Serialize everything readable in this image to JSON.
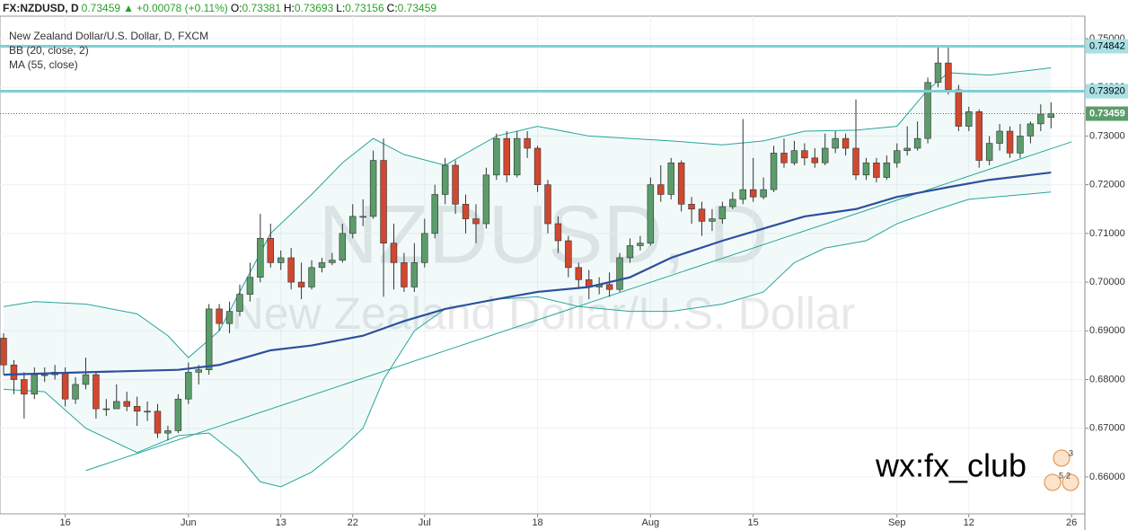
{
  "header": {
    "symbol": "FX:NZDUSD, D",
    "price": "0.73459",
    "arrow": "▲",
    "change": "+0.00078 (+0.11%)",
    "open_label": "O:",
    "open": "0.73381",
    "high_label": "H:",
    "high": "0.73693",
    "low_label": "L:",
    "low": "0.73156",
    "close_label": "C:",
    "close": "0.73459"
  },
  "watermark": {
    "symbol": "NZDUSD, D",
    "name": "New Zealand Dollar/U.S. Dollar"
  },
  "signature": "wx:fx_club",
  "events": [
    "3",
    "5",
    "2"
  ],
  "chart_data": {
    "type": "candlestick",
    "legend": [
      "New Zealand Dollar/U.S. Dollar, D, FXCM",
      "BB (20, close, 2)",
      "MA (55, close)"
    ],
    "up_color": "#5b9c6b",
    "down_color": "#d2472f",
    "xlim": [
      -0.35,
      105.3
    ],
    "xticks": [
      {
        "value": 6,
        "label": "16"
      },
      {
        "value": 18,
        "label": "Jun"
      },
      {
        "value": 27,
        "label": "13"
      },
      {
        "value": 34,
        "label": "22"
      },
      {
        "value": 41,
        "label": "Jul"
      },
      {
        "value": 52,
        "label": "18"
      },
      {
        "value": 63,
        "label": "Aug"
      },
      {
        "value": 73,
        "label": "15"
      },
      {
        "value": 87,
        "label": "Sep"
      },
      {
        "value": 94,
        "label": "12"
      },
      {
        "value": 104,
        "label": "26"
      }
    ],
    "ylim": [
      0.65243,
      0.75461
    ],
    "yticks": [
      {
        "value": 0.66,
        "label": "0.66000"
      },
      {
        "value": 0.67,
        "label": "0.67000"
      },
      {
        "value": 0.68,
        "label": "0.68000"
      },
      {
        "value": 0.69,
        "label": "0.69000"
      },
      {
        "value": 0.7,
        "label": "0.70000"
      },
      {
        "value": 0.71,
        "label": "0.71000"
      },
      {
        "value": 0.72,
        "label": "0.72000"
      },
      {
        "value": 0.73,
        "label": "0.73000"
      },
      {
        "value": 0.74,
        "label": "0.74000"
      },
      {
        "value": 0.75,
        "label": "0.75000"
      }
    ],
    "grid": true,
    "open": [
      0.6885,
      0.683,
      0.68,
      0.677,
      0.681,
      0.681,
      0.6815,
      0.676,
      0.679,
      0.681,
      0.674,
      0.674,
      0.6755,
      0.6745,
      0.6735,
      0.6735,
      0.669,
      0.6695,
      0.676,
      0.6815,
      0.682,
      0.6945,
      0.6915,
      0.694,
      0.6975,
      0.701,
      0.709,
      0.704,
      0.705,
      0.7,
      0.699,
      0.703,
      0.704,
      0.7045,
      0.71,
      0.7135,
      0.7135,
      0.725,
      0.708,
      0.704,
      0.699,
      0.704,
      0.71,
      0.718,
      0.724,
      0.716,
      0.713,
      0.712,
      0.722,
      0.7295,
      0.722,
      0.7295,
      0.7275,
      0.72,
      0.712,
      0.7085,
      0.703,
      0.7005,
      0.699,
      0.6995,
      0.6985,
      0.705,
      0.7075,
      0.708,
      0.72,
      0.718,
      0.7245,
      0.716,
      0.715,
      0.7125,
      0.713,
      0.7155,
      0.717,
      0.719,
      0.7175,
      0.719,
      0.7265,
      0.7245,
      0.727,
      0.7255,
      0.7245,
      0.7275,
      0.7295,
      0.7275,
      0.722,
      0.7245,
      0.7215,
      0.7245,
      0.727,
      0.7275,
      0.7295,
      0.741,
      0.745,
      0.7395,
      0.732,
      0.735,
      0.725,
      0.7285,
      0.731,
      0.7265,
      0.73,
      0.7325,
      0.73381
    ],
    "high": [
      0.6895,
      0.684,
      0.6815,
      0.6825,
      0.6825,
      0.683,
      0.6825,
      0.6805,
      0.6845,
      0.6815,
      0.676,
      0.679,
      0.6775,
      0.6765,
      0.6755,
      0.675,
      0.6705,
      0.677,
      0.6835,
      0.683,
      0.6955,
      0.6955,
      0.696,
      0.6995,
      0.704,
      0.714,
      0.712,
      0.7065,
      0.707,
      0.704,
      0.7045,
      0.705,
      0.706,
      0.712,
      0.716,
      0.717,
      0.727,
      0.7295,
      0.712,
      0.706,
      0.708,
      0.713,
      0.72,
      0.7255,
      0.725,
      0.718,
      0.716,
      0.7235,
      0.7305,
      0.731,
      0.731,
      0.731,
      0.728,
      0.721,
      0.7135,
      0.7095,
      0.704,
      0.7025,
      0.701,
      0.702,
      0.706,
      0.709,
      0.7095,
      0.7215,
      0.724,
      0.7255,
      0.725,
      0.7175,
      0.7165,
      0.715,
      0.7165,
      0.7185,
      0.7335,
      0.7255,
      0.7215,
      0.728,
      0.7295,
      0.729,
      0.7285,
      0.7275,
      0.7305,
      0.731,
      0.7305,
      0.7375,
      0.7255,
      0.7255,
      0.726,
      0.7285,
      0.732,
      0.733,
      0.742,
      0.7485,
      0.7485,
      0.7405,
      0.736,
      0.7355,
      0.73,
      0.7325,
      0.732,
      0.7325,
      0.733,
      0.7365,
      0.73693
    ],
    "low": [
      0.681,
      0.677,
      0.672,
      0.676,
      0.6795,
      0.68,
      0.6745,
      0.675,
      0.678,
      0.672,
      0.6725,
      0.674,
      0.6735,
      0.6705,
      0.6715,
      0.668,
      0.6675,
      0.669,
      0.675,
      0.679,
      0.681,
      0.69,
      0.6895,
      0.693,
      0.696,
      0.7,
      0.703,
      0.7025,
      0.6985,
      0.6965,
      0.6985,
      0.702,
      0.7035,
      0.704,
      0.709,
      0.7115,
      0.713,
      0.697,
      0.6985,
      0.698,
      0.698,
      0.703,
      0.709,
      0.716,
      0.714,
      0.71,
      0.708,
      0.711,
      0.721,
      0.7205,
      0.7215,
      0.7255,
      0.7185,
      0.71,
      0.706,
      0.701,
      0.699,
      0.6965,
      0.6975,
      0.697,
      0.698,
      0.704,
      0.7065,
      0.7075,
      0.7165,
      0.717,
      0.7145,
      0.712,
      0.7095,
      0.7105,
      0.712,
      0.715,
      0.716,
      0.7165,
      0.717,
      0.7185,
      0.7235,
      0.724,
      0.724,
      0.7235,
      0.724,
      0.7265,
      0.726,
      0.721,
      0.721,
      0.7205,
      0.721,
      0.7235,
      0.726,
      0.727,
      0.7285,
      0.74,
      0.7385,
      0.731,
      0.731,
      0.7235,
      0.724,
      0.727,
      0.7255,
      0.7255,
      0.7285,
      0.731,
      0.73156
    ],
    "close": [
      0.683,
      0.68,
      0.677,
      0.681,
      0.681,
      0.6815,
      0.676,
      0.679,
      0.681,
      0.674,
      0.674,
      0.6755,
      0.6745,
      0.6735,
      0.6735,
      0.669,
      0.6695,
      0.676,
      0.6815,
      0.682,
      0.6945,
      0.6915,
      0.694,
      0.6975,
      0.701,
      0.709,
      0.704,
      0.705,
      0.7,
      0.699,
      0.703,
      0.704,
      0.7045,
      0.71,
      0.7135,
      0.7135,
      0.725,
      0.708,
      0.704,
      0.699,
      0.704,
      0.71,
      0.718,
      0.724,
      0.716,
      0.713,
      0.712,
      0.722,
      0.7295,
      0.722,
      0.7295,
      0.7275,
      0.72,
      0.712,
      0.7085,
      0.703,
      0.7005,
      0.699,
      0.6995,
      0.6985,
      0.705,
      0.7075,
      0.708,
      0.72,
      0.718,
      0.7245,
      0.716,
      0.715,
      0.7125,
      0.713,
      0.7155,
      0.717,
      0.719,
      0.7175,
      0.719,
      0.7265,
      0.7245,
      0.727,
      0.7255,
      0.7245,
      0.7275,
      0.7295,
      0.7275,
      0.722,
      0.7245,
      0.7215,
      0.7245,
      0.727,
      0.7275,
      0.7295,
      0.741,
      0.745,
      0.7395,
      0.732,
      0.735,
      0.725,
      0.7285,
      0.731,
      0.7265,
      0.73,
      0.7325,
      0.7345,
      0.73459
    ],
    "bb_upper": {
      "color": "#26a69a",
      "x": [
        0,
        3,
        8,
        13,
        16,
        18,
        21,
        26,
        30,
        33,
        36,
        39,
        43,
        48,
        52,
        57,
        61,
        65,
        70,
        74,
        78,
        83,
        87,
        90,
        92,
        96,
        102
      ],
      "values": [
        0.695,
        0.696,
        0.6955,
        0.6935,
        0.689,
        0.6845,
        0.69,
        0.71,
        0.718,
        0.7245,
        0.7295,
        0.7262,
        0.724,
        0.73,
        0.732,
        0.73,
        0.7295,
        0.729,
        0.7282,
        0.729,
        0.731,
        0.7312,
        0.732,
        0.7395,
        0.743,
        0.7425,
        0.744
      ]
    },
    "bb_lower": {
      "color": "#26a69a",
      "x": [
        0,
        4,
        8,
        13,
        17,
        20,
        23,
        25,
        27,
        30,
        33,
        35,
        37,
        40,
        43,
        48,
        52,
        56,
        61,
        65,
        70,
        74,
        77,
        80,
        84,
        87,
        91,
        94,
        102
      ],
      "values": [
        0.678,
        0.6775,
        0.67,
        0.665,
        0.6685,
        0.669,
        0.664,
        0.659,
        0.658,
        0.661,
        0.666,
        0.67,
        0.68,
        0.69,
        0.6945,
        0.6965,
        0.697,
        0.695,
        0.694,
        0.694,
        0.6955,
        0.698,
        0.704,
        0.707,
        0.7085,
        0.712,
        0.715,
        0.717,
        0.7185
      ]
    },
    "ma": {
      "color": "#2e4f9e",
      "x": [
        0,
        8,
        17,
        21,
        26,
        30,
        35,
        39,
        43,
        48,
        52,
        57,
        61,
        65,
        70,
        74,
        78,
        83,
        87,
        92,
        96,
        102
      ],
      "values": [
        0.681,
        0.6815,
        0.682,
        0.683,
        0.686,
        0.687,
        0.689,
        0.692,
        0.6945,
        0.6965,
        0.698,
        0.699,
        0.701,
        0.705,
        0.7085,
        0.711,
        0.7135,
        0.715,
        0.7175,
        0.7195,
        0.721,
        0.7225
      ]
    },
    "trend_line": {
      "color": "#26a69a",
      "x": [
        8,
        104
      ],
      "values": [
        0.6613,
        0.7288
      ]
    },
    "levels": [
      {
        "value": 0.74842,
        "label": "0.74842"
      },
      {
        "value": 0.7392,
        "label": "0.73920"
      }
    ],
    "last_price": {
      "value": 0.73459,
      "label": "0.73459"
    }
  }
}
